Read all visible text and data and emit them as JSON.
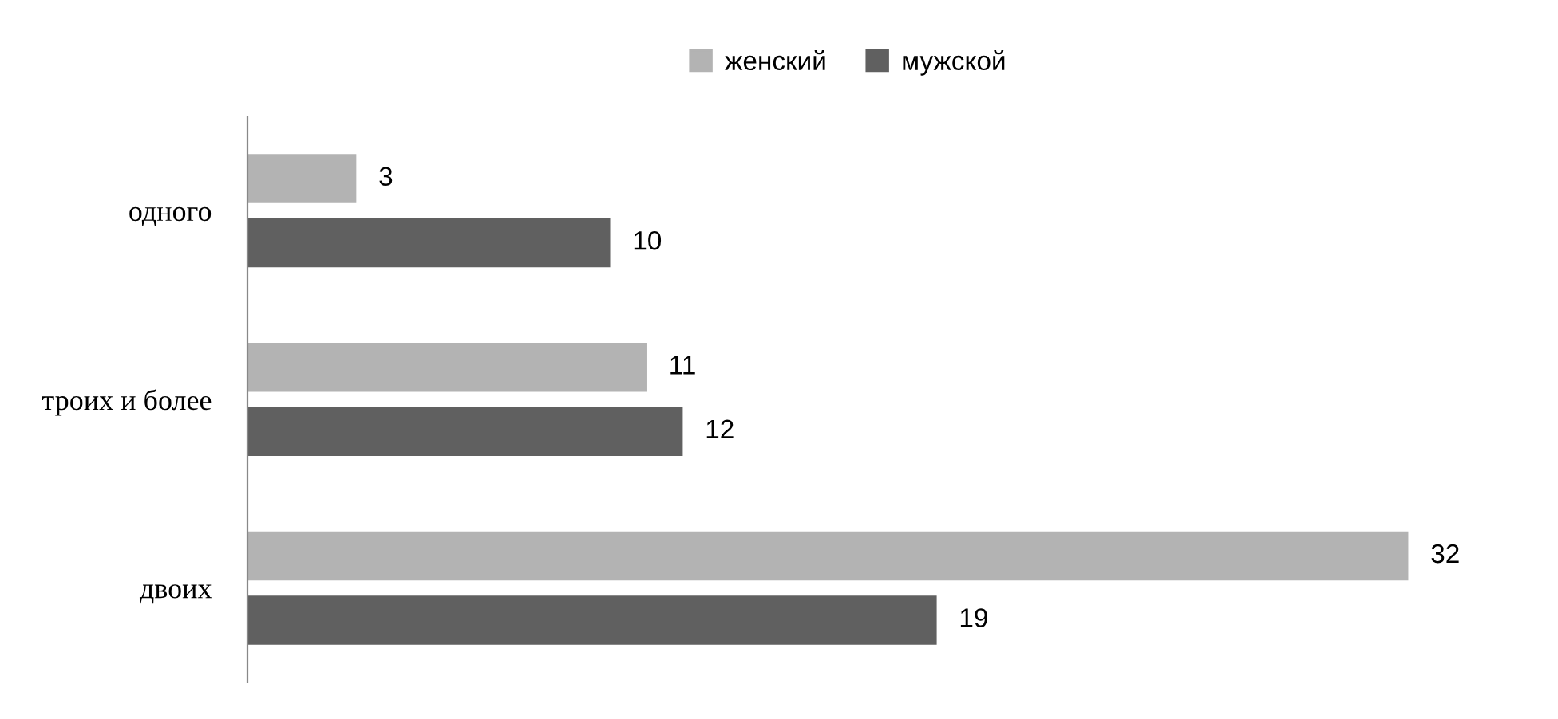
{
  "chart_data": {
    "type": "bar",
    "orientation": "horizontal",
    "categories": [
      "одного",
      "троих и более",
      "двоих"
    ],
    "series": [
      {
        "name": "женский",
        "color": "#b3b3b3",
        "values": [
          3,
          11,
          32
        ]
      },
      {
        "name": "мужской",
        "color": "#606060",
        "values": [
          10,
          12,
          19
        ]
      }
    ],
    "data_labels": true,
    "legend": "top",
    "grid": false
  }
}
